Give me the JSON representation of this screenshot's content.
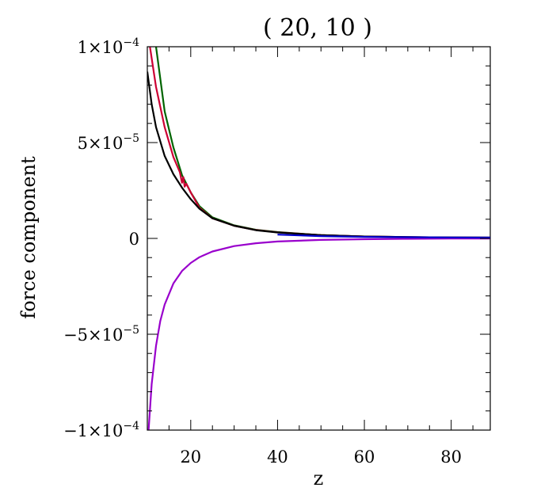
{
  "chart_data": {
    "type": "line",
    "title": "( 20, 10 )",
    "xlabel": "z",
    "ylabel": "force component",
    "xlim": [
      10,
      89
    ],
    "ylim": [
      -0.0001,
      0.0001
    ],
    "x_ticks": [
      {
        "value": 20,
        "label": "20"
      },
      {
        "value": 40,
        "label": "40"
      },
      {
        "value": 60,
        "label": "60"
      },
      {
        "value": 80,
        "label": "80"
      }
    ],
    "y_ticks": [
      {
        "value": 0.0001,
        "mant": "1×10",
        "exp": "−4"
      },
      {
        "value": 5e-05,
        "mant": "5×10",
        "exp": "−5"
      },
      {
        "value": 0,
        "mant": "0",
        "exp": ""
      },
      {
        "value": -5e-05,
        "mant": "−5×10",
        "exp": "−5"
      },
      {
        "value": -0.0001,
        "mant": "−1×10",
        "exp": "−4"
      }
    ],
    "x_minor_step": 5,
    "y_minor_step": 1e-05,
    "grid": false,
    "series": [
      {
        "color": "#006400",
        "x": [
          12,
          14,
          16,
          18,
          20,
          22,
          25,
          30,
          35,
          40,
          50,
          60,
          70,
          80,
          89
        ],
        "y": [
          0.0001,
          6.63e-05,
          4.75e-05,
          3.3e-05,
          2.4e-05,
          1.68e-05,
          1.1e-05,
          6.8e-06,
          4.5e-06,
          3.3e-06,
          1.7e-06,
          1e-06,
          7e-07,
          5e-07,
          4e-07
        ]
      },
      {
        "color": "#cc0033",
        "x": [
          10.6,
          12,
          14,
          16,
          17.5,
          18,
          18.3,
          18.6,
          19,
          20,
          22,
          25,
          30,
          35,
          40,
          50,
          60,
          70,
          80,
          89
        ],
        "y": [
          0.0001,
          7.9e-05,
          5.8e-05,
          4.25e-05,
          3.45e-05,
          2.9e-05,
          3.2e-05,
          2.7e-05,
          2.85e-05,
          2.4e-05,
          1.6e-05,
          1.05e-05,
          6.6e-06,
          4.4e-06,
          3.2e-06,
          1.7e-06,
          1e-06,
          7e-07,
          5e-07,
          4e-07
        ]
      },
      {
        "color": "#000000",
        "x": [
          10,
          11,
          12,
          14,
          16,
          18,
          20,
          22,
          25,
          30,
          35,
          40,
          50,
          60,
          70,
          80,
          89
        ],
        "y": [
          8.7e-05,
          7e-05,
          5.8e-05,
          4.3e-05,
          3.35e-05,
          2.65e-05,
          2.05e-05,
          1.55e-05,
          1.05e-05,
          6.6e-06,
          4.3e-06,
          3.1e-06,
          1.7e-06,
          1e-06,
          7e-07,
          5e-07,
          4e-07
        ]
      },
      {
        "color": "#9900cc",
        "x": [
          10.3,
          11,
          12,
          13,
          14,
          16,
          18,
          20,
          22,
          25,
          30,
          35,
          40,
          50,
          60,
          70,
          80,
          89
        ],
        "y": [
          -0.0001,
          -7.6e-05,
          -5.6e-05,
          -4.3e-05,
          -3.45e-05,
          -2.35e-05,
          -1.7e-05,
          -1.28e-05,
          -9.8e-06,
          -6.8e-06,
          -4e-06,
          -2.5e-06,
          -1.6e-06,
          -8e-07,
          -4e-07,
          -2e-07,
          -1e-07,
          -5e-08
        ]
      },
      {
        "color": "#0000cc",
        "x": [
          40,
          50,
          60,
          70,
          80,
          89
        ],
        "y": [
          2e-06,
          1.2e-06,
          8e-07,
          6e-07,
          5e-07,
          4e-07
        ]
      }
    ]
  }
}
